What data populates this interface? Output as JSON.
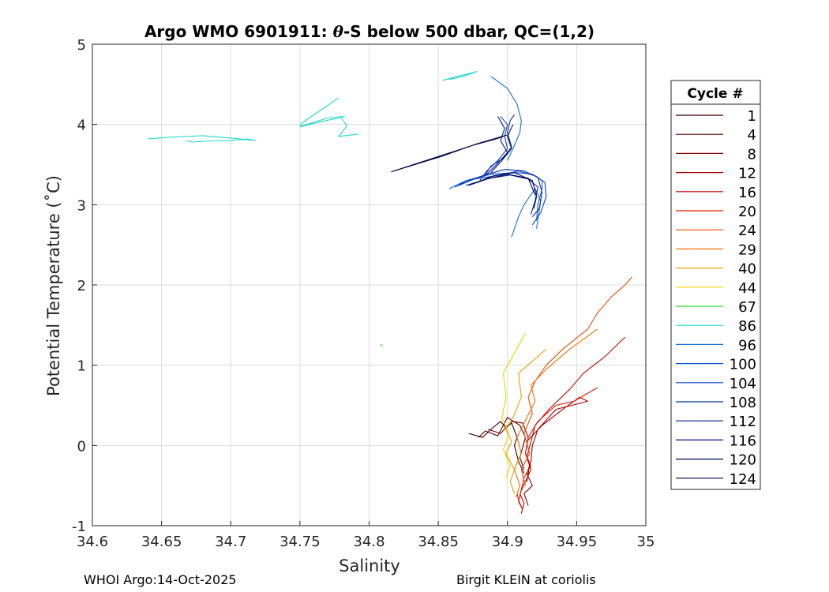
{
  "chart_data": {
    "type": "line",
    "title_prefix": "Argo WMO 6901911: ",
    "title_theta": "θ",
    "title_suffix": "-S below 500 dbar,  QC=(1,2)",
    "xlabel": "Salinity",
    "ylabel": "Potential Temperature (˚C)",
    "xlim": [
      34.6,
      35.0
    ],
    "ylim": [
      -1,
      5
    ],
    "xticks": [
      "34.6",
      "34.65",
      "34.7",
      "34.75",
      "34.8",
      "34.85",
      "34.9",
      "34.95",
      "35"
    ],
    "yticks": [
      "-1",
      "0",
      "1",
      "2",
      "3",
      "4",
      "5"
    ],
    "grid": true,
    "legend_title": "Cycle #",
    "legend_position": "outside-right",
    "series": [
      {
        "name": "1",
        "color": "#3a0000",
        "x": [
          34.872,
          34.882,
          34.888,
          34.895,
          34.899,
          34.903,
          34.907,
          34.905,
          34.908,
          34.912
        ],
        "y": [
          0.15,
          0.1,
          0.2,
          0.3,
          0.22,
          0.28,
          0.1,
          0.0,
          -0.2,
          -0.35
        ]
      },
      {
        "name": "4",
        "color": "#5a0000",
        "x": [
          34.879,
          34.884,
          34.893,
          34.9,
          34.909,
          34.913,
          34.909,
          34.912
        ],
        "y": [
          0.1,
          0.18,
          0.12,
          0.35,
          0.25,
          0.1,
          -0.15,
          -0.3
        ]
      },
      {
        "name": "8",
        "color": "#7d0000",
        "x": [
          34.886,
          34.895,
          34.903,
          34.911,
          34.915,
          34.913,
          34.916,
          34.914
        ],
        "y": [
          0.2,
          0.15,
          0.3,
          0.28,
          0.1,
          -0.1,
          -0.25,
          -0.45
        ]
      },
      {
        "name": "12",
        "color": "#a00000",
        "x": [
          34.914,
          34.925,
          34.94,
          34.952,
          34.958,
          34.935,
          34.922,
          34.918,
          34.917,
          34.914,
          34.918,
          34.912,
          34.915
        ],
        "y": [
          0.05,
          0.25,
          0.45,
          0.6,
          0.55,
          0.45,
          0.2,
          0.0,
          -0.2,
          -0.35,
          -0.5,
          -0.6,
          -0.75
        ]
      },
      {
        "name": "16",
        "color": "#c40000",
        "x": [
          34.985,
          34.97,
          34.955,
          34.945,
          34.93,
          34.92,
          34.917,
          34.914,
          34.917,
          34.913,
          34.909,
          34.912,
          34.91
        ],
        "y": [
          1.35,
          1.1,
          0.9,
          0.7,
          0.45,
          0.25,
          0.05,
          -0.15,
          -0.3,
          -0.45,
          -0.6,
          -0.72,
          -0.85
        ]
      },
      {
        "name": "20",
        "color": "#e01a00",
        "x": [
          34.965,
          34.948,
          34.935,
          34.922,
          34.915,
          34.913,
          34.917,
          34.912,
          34.91,
          34.908,
          34.911,
          34.908,
          34.907
        ],
        "y": [
          0.72,
          0.55,
          0.5,
          0.3,
          0.1,
          -0.1,
          -0.25,
          -0.4,
          -0.55,
          -0.7,
          -0.8,
          -0.68,
          -0.6
        ]
      },
      {
        "name": "24",
        "color": "#f04a00",
        "x": [
          34.99,
          34.985,
          34.975,
          34.965,
          34.958,
          34.94,
          34.928,
          34.92,
          34.915,
          34.918,
          34.912,
          34.916,
          34.91,
          34.913
        ],
        "y": [
          2.1,
          2.0,
          1.85,
          1.65,
          1.45,
          1.2,
          1.0,
          0.8,
          0.6,
          0.4,
          0.15,
          -0.1,
          -0.3,
          -0.5
        ]
      },
      {
        "name": "29",
        "color": "#f07000",
        "x": [
          34.965,
          34.945,
          34.928,
          34.917,
          34.92,
          34.914,
          34.907,
          34.91,
          34.905,
          34.909,
          34.906
        ],
        "y": [
          1.45,
          1.2,
          0.95,
          0.75,
          0.55,
          0.35,
          0.1,
          -0.1,
          -0.3,
          -0.5,
          -0.65
        ]
      },
      {
        "name": "40",
        "color": "#f0a000",
        "x": [
          34.928,
          34.908,
          34.91,
          34.904,
          34.899,
          34.903,
          34.899,
          34.905,
          34.902,
          34.905
        ],
        "y": [
          1.2,
          0.9,
          0.6,
          0.35,
          0.2,
          0.05,
          -0.1,
          -0.3,
          -0.45,
          -0.6
        ]
      },
      {
        "name": "44",
        "color": "#f0d000",
        "x": [
          34.913,
          34.905,
          34.897,
          34.899,
          34.896,
          34.901,
          34.897,
          34.902,
          34.899
        ],
        "y": [
          1.4,
          1.15,
          0.9,
          0.6,
          0.35,
          0.15,
          -0.05,
          -0.25,
          -0.4
        ]
      },
      {
        "name": "67",
        "color": "#30d830",
        "x": [
          34.808,
          34.81
        ],
        "y": [
          1.26,
          1.24
        ]
      },
      {
        "name": "86",
        "color": "#20d8c8",
        "x": [
          34.64,
          34.655,
          34.68,
          34.7,
          34.718,
          34.712,
          34.7,
          34.68,
          34.672,
          34.668
        ],
        "y": [
          3.82,
          3.84,
          3.86,
          3.83,
          3.8,
          3.82,
          3.8,
          3.79,
          3.78,
          3.8
        ]
      },
      {
        "name": "86",
        "color": "#20d8c8",
        "x": [
          34.75,
          34.764,
          34.778,
          34.782,
          34.77,
          34.755,
          34.75
        ],
        "y": [
          3.97,
          4.03,
          4.08,
          4.1,
          4.08,
          4.0,
          3.98
        ]
      },
      {
        "name": "86",
        "color": "#20d8c8",
        "x": [
          34.78,
          34.784,
          34.778,
          34.792
        ],
        "y": [
          4.08,
          3.98,
          3.85,
          3.88
        ]
      },
      {
        "name": "86",
        "color": "#20d8c8",
        "x": [
          34.778,
          34.76,
          34.75
        ],
        "y": [
          4.33,
          4.12,
          4.0
        ]
      },
      {
        "name": "86",
        "color": "#20d8c8",
        "x": [
          34.853,
          34.864,
          34.878,
          34.868,
          34.858
        ],
        "y": [
          4.55,
          4.6,
          4.66,
          4.6,
          4.56
        ]
      },
      {
        "name": "96",
        "color": "#1070e0",
        "x": [
          34.903,
          34.908,
          34.912,
          34.918,
          34.92,
          34.924,
          34.921
        ],
        "y": [
          2.6,
          2.85,
          3.0,
          3.15,
          3.2,
          3.05,
          2.7
        ]
      },
      {
        "name": "96",
        "color": "#1070e0",
        "x": [
          34.888,
          34.9,
          34.907,
          34.91,
          34.909,
          34.904,
          34.9
        ],
        "y": [
          4.6,
          4.45,
          4.25,
          4.05,
          3.9,
          3.7,
          3.55
        ]
      },
      {
        "name": "100",
        "color": "#0a56d0",
        "x": [
          34.858,
          34.87,
          34.888,
          34.906,
          34.918,
          34.925,
          34.925,
          34.922,
          34.921
        ],
        "y": [
          3.2,
          3.3,
          3.38,
          3.4,
          3.38,
          3.3,
          3.2,
          3.0,
          2.8
        ]
      },
      {
        "name": "104",
        "color": "#0840c0",
        "x": [
          34.862,
          34.876,
          34.892,
          34.908,
          34.92,
          34.927,
          34.928,
          34.924,
          34.918
        ],
        "y": [
          3.22,
          3.32,
          3.36,
          3.42,
          3.36,
          3.28,
          3.1,
          2.9,
          2.75
        ]
      },
      {
        "name": "104",
        "color": "#0840c0",
        "x": [
          34.88,
          34.885,
          34.893,
          34.9,
          34.898,
          34.9,
          34.895
        ],
        "y": [
          3.3,
          3.42,
          3.55,
          3.7,
          3.85,
          4.0,
          4.1
        ]
      },
      {
        "name": "108",
        "color": "#062ea8",
        "x": [
          34.865,
          34.88,
          34.898,
          34.912,
          34.922,
          34.925,
          34.923,
          34.918
        ],
        "y": [
          3.25,
          3.35,
          3.44,
          3.42,
          3.34,
          3.15,
          2.95,
          2.85
        ]
      },
      {
        "name": "108",
        "color": "#062ea8",
        "x": [
          34.883,
          34.888,
          34.897,
          34.903,
          34.9,
          34.902,
          34.905
        ],
        "y": [
          3.35,
          3.48,
          3.58,
          3.72,
          3.9,
          4.05,
          4.12
        ]
      },
      {
        "name": "112",
        "color": "#041e90",
        "x": [
          34.87,
          34.887,
          34.902,
          34.915,
          34.922,
          34.92,
          34.917
        ],
        "y": [
          3.24,
          3.33,
          3.37,
          3.32,
          3.22,
          3.05,
          2.88
        ]
      },
      {
        "name": "112",
        "color": "#041e90",
        "x": [
          34.885,
          34.892,
          34.9,
          34.895,
          34.898,
          34.893
        ],
        "y": [
          3.38,
          3.5,
          3.65,
          3.8,
          3.95,
          4.1
        ]
      },
      {
        "name": "116",
        "color": "#03126e",
        "x": [
          34.875,
          34.89,
          34.905,
          34.918,
          34.921,
          34.919
        ],
        "y": [
          3.26,
          3.36,
          3.4,
          3.3,
          3.1,
          2.95
        ]
      },
      {
        "name": "116",
        "color": "#03126e",
        "x": [
          34.888,
          34.896,
          34.903,
          34.9,
          34.904
        ],
        "y": [
          3.4,
          3.55,
          3.7,
          3.85,
          4.0
        ]
      },
      {
        "name": "120",
        "color": "#020a50",
        "x": [
          34.872,
          34.885,
          34.9,
          34.915,
          34.92
        ],
        "y": [
          3.24,
          3.32,
          3.38,
          3.33,
          3.12
        ]
      },
      {
        "name": "120",
        "color": "#020a50",
        "x": [
          34.816,
          34.85,
          34.875,
          34.892,
          34.897
        ],
        "y": [
          3.41,
          3.6,
          3.74,
          3.82,
          3.85
        ]
      },
      {
        "name": "124",
        "color": "#010640",
        "x": [
          34.818,
          34.852,
          34.878,
          34.894,
          34.9
        ],
        "y": [
          3.42,
          3.6,
          3.76,
          3.84,
          3.87
        ]
      }
    ],
    "legend_entries": [
      {
        "label": "1",
        "color": "#3a0000"
      },
      {
        "label": "4",
        "color": "#5a0000"
      },
      {
        "label": "8",
        "color": "#7d0000"
      },
      {
        "label": "12",
        "color": "#a00000"
      },
      {
        "label": "16",
        "color": "#c40000"
      },
      {
        "label": "20",
        "color": "#e01a00"
      },
      {
        "label": "24",
        "color": "#f04a00"
      },
      {
        "label": "29",
        "color": "#f07000"
      },
      {
        "label": "40",
        "color": "#f0a000"
      },
      {
        "label": "44",
        "color": "#f0d000"
      },
      {
        "label": "67",
        "color": "#30d830"
      },
      {
        "label": "86",
        "color": "#20d8c8"
      },
      {
        "label": "96",
        "color": "#1070e0"
      },
      {
        "label": "100",
        "color": "#0a56d0"
      },
      {
        "label": "104",
        "color": "#0840c0"
      },
      {
        "label": "108",
        "color": "#062ea8"
      },
      {
        "label": "112",
        "color": "#041e90"
      },
      {
        "label": "116",
        "color": "#03126e"
      },
      {
        "label": "120",
        "color": "#020a50"
      },
      {
        "label": "124",
        "color": "#010640"
      }
    ]
  },
  "footer": {
    "left": "WHOI Argo:14-Oct-2025",
    "right": "Birgit KLEIN at coriolis"
  }
}
